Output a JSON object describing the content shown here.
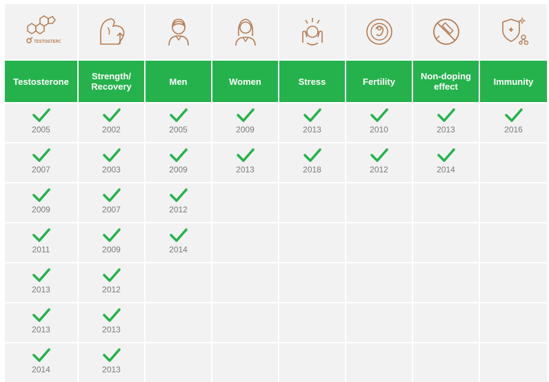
{
  "colors": {
    "accent_green": "#25b24c",
    "icon_brown": "#b47a50",
    "cell_bg": "#f2f2f2"
  },
  "columns": [
    {
      "label": "Testosterone",
      "icon": "testosterone-molecule-icon",
      "icon_text": "TESTOSTERONE",
      "years": [
        "2005",
        "2007",
        "2009",
        "2011",
        "2013",
        "2013",
        "2014"
      ]
    },
    {
      "label": "Strength/\nRecovery",
      "icon": "flexed-arm-icon",
      "years": [
        "2002",
        "2003",
        "2007",
        "2009",
        "2012",
        "2013",
        "2013"
      ]
    },
    {
      "label": "Men",
      "icon": "man-icon",
      "years": [
        "2005",
        "2009",
        "2012",
        "2014"
      ]
    },
    {
      "label": "Women",
      "icon": "woman-icon",
      "years": [
        "2009",
        "2013"
      ]
    },
    {
      "label": "Stress",
      "icon": "stressed-person-icon",
      "years": [
        "2013",
        "2018"
      ]
    },
    {
      "label": "Fertility",
      "icon": "fertility-embryo-icon",
      "years": [
        "2010",
        "2012"
      ]
    },
    {
      "label": "Non-doping\neffect",
      "icon": "no-syringe-icon",
      "years": [
        "2013",
        "2014"
      ]
    },
    {
      "label": "Immunity",
      "icon": "immunity-shield-icon",
      "years": [
        "2016"
      ]
    }
  ]
}
